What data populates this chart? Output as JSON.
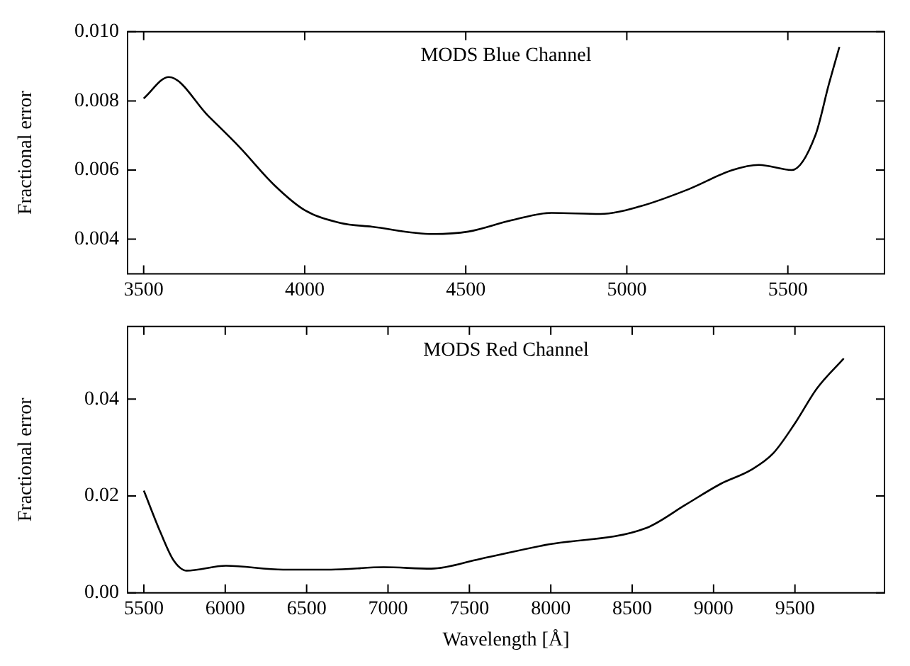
{
  "chart_data": [
    {
      "type": "line",
      "title": "MODS Blue Channel",
      "ylabel": "Fractional error",
      "xlim": [
        3450,
        5800
      ],
      "xticks": [
        3500,
        4000,
        4500,
        5000,
        5500
      ],
      "ylim": [
        0.003,
        0.01
      ],
      "yticks": [
        0.004,
        0.006,
        0.008,
        {
          "value": 0.01,
          "label": "0.010"
        }
      ],
      "grid": false,
      "legend": false,
      "marker": "none",
      "line_style": "solid",
      "series": [
        {
          "color": "#000000",
          "x": [
            3500,
            3578,
            3701,
            3799,
            3906,
            4000,
            4111,
            4209,
            4398,
            4508,
            4643,
            4766,
            4918,
            5041,
            5193,
            5328,
            5410,
            5512,
            5586,
            5627,
            5660
          ],
          "values": [
            0.00807,
            0.00869,
            0.00756,
            0.00665,
            0.00556,
            0.00484,
            0.00447,
            0.00436,
            0.00415,
            0.00422,
            0.00455,
            0.00476,
            0.00473,
            0.00495,
            0.00545,
            0.006,
            0.00615,
            0.006,
            0.00702,
            0.00847,
            0.00956
          ]
        }
      ]
    },
    {
      "type": "line",
      "title": "MODS Red Channel",
      "xlabel": "Wavelength [Å]",
      "ylabel": "Fractional error",
      "xlim": [
        5400,
        10050
      ],
      "xticks": [
        5500,
        6000,
        6500,
        7000,
        7500,
        8000,
        8500,
        9000,
        9500
      ],
      "ylim": [
        0,
        0.055
      ],
      "yticks": [
        {
          "value": 0,
          "label": "0.00"
        },
        {
          "value": 0.02,
          "label": "0.02"
        },
        {
          "value": 0.04,
          "label": "0.04"
        }
      ],
      "grid": false,
      "legend": false,
      "marker": "none",
      "line_style": "solid",
      "series": [
        {
          "color": "#000000",
          "x": [
            5500,
            5602,
            5683,
            5763,
            6005,
            6355,
            6650,
            6973,
            7266,
            7565,
            7968,
            8586,
            8828,
            9043,
            9231,
            9366,
            9500,
            9635,
            9800
          ],
          "values": [
            0.0211,
            0.0125,
            0.0067,
            0.0046,
            0.0056,
            0.0048,
            0.0048,
            0.0053,
            0.005,
            0.007,
            0.0099,
            0.0134,
            0.0182,
            0.0225,
            0.0254,
            0.0288,
            0.035,
            0.0422,
            0.0484
          ]
        }
      ]
    }
  ]
}
